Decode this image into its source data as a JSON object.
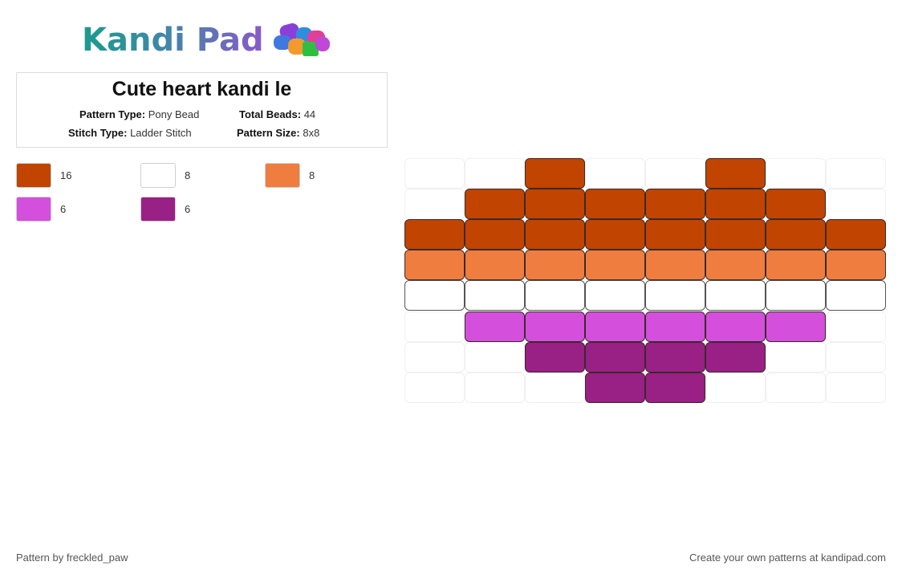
{
  "logo": {
    "text": "Kandi Pad"
  },
  "pattern": {
    "title": "Cute heart kandi le",
    "pattern_type_label": "Pattern Type:",
    "pattern_type": "Pony Bead",
    "total_beads_label": "Total Beads:",
    "total_beads": "44",
    "stitch_type_label": "Stitch Type:",
    "stitch_type": "Ladder Stitch",
    "pattern_size_label": "Pattern Size:",
    "pattern_size": "8x8"
  },
  "colors": {
    "rust": "#c14400",
    "white": "#ffffff",
    "orange": "#ef7d3f",
    "pink": "#d44fdc",
    "purple": "#992085"
  },
  "legend": [
    {
      "color": "#c14400",
      "count": "16"
    },
    {
      "color": "#ffffff",
      "count": "8"
    },
    {
      "color": "#ef7d3f",
      "count": "8"
    },
    {
      "color": "#d44fdc",
      "count": "6"
    },
    {
      "color": "#992085",
      "count": "6"
    }
  ],
  "grid": {
    "columns": 8,
    "rows": [
      [
        null,
        null,
        "rust",
        null,
        null,
        "rust",
        null,
        null
      ],
      [
        null,
        "rust",
        "rust",
        "rust",
        "rust",
        "rust",
        "rust",
        null
      ],
      [
        "rust",
        "rust",
        "rust",
        "rust",
        "rust",
        "rust",
        "rust",
        "rust"
      ],
      [
        "orange",
        "orange",
        "orange",
        "orange",
        "orange",
        "orange",
        "orange",
        "orange"
      ],
      [
        "white",
        "white",
        "white",
        "white",
        "white",
        "white",
        "white",
        "white"
      ],
      [
        null,
        "pink",
        "pink",
        "pink",
        "pink",
        "pink",
        "pink",
        null
      ],
      [
        null,
        null,
        "purple",
        "purple",
        "purple",
        "purple",
        null,
        null
      ],
      [
        null,
        null,
        null,
        "purple",
        "purple",
        null,
        null,
        null
      ]
    ]
  },
  "footer": {
    "author": "Pattern by freckled_paw",
    "cta": "Create your own patterns at kandipad.com"
  }
}
